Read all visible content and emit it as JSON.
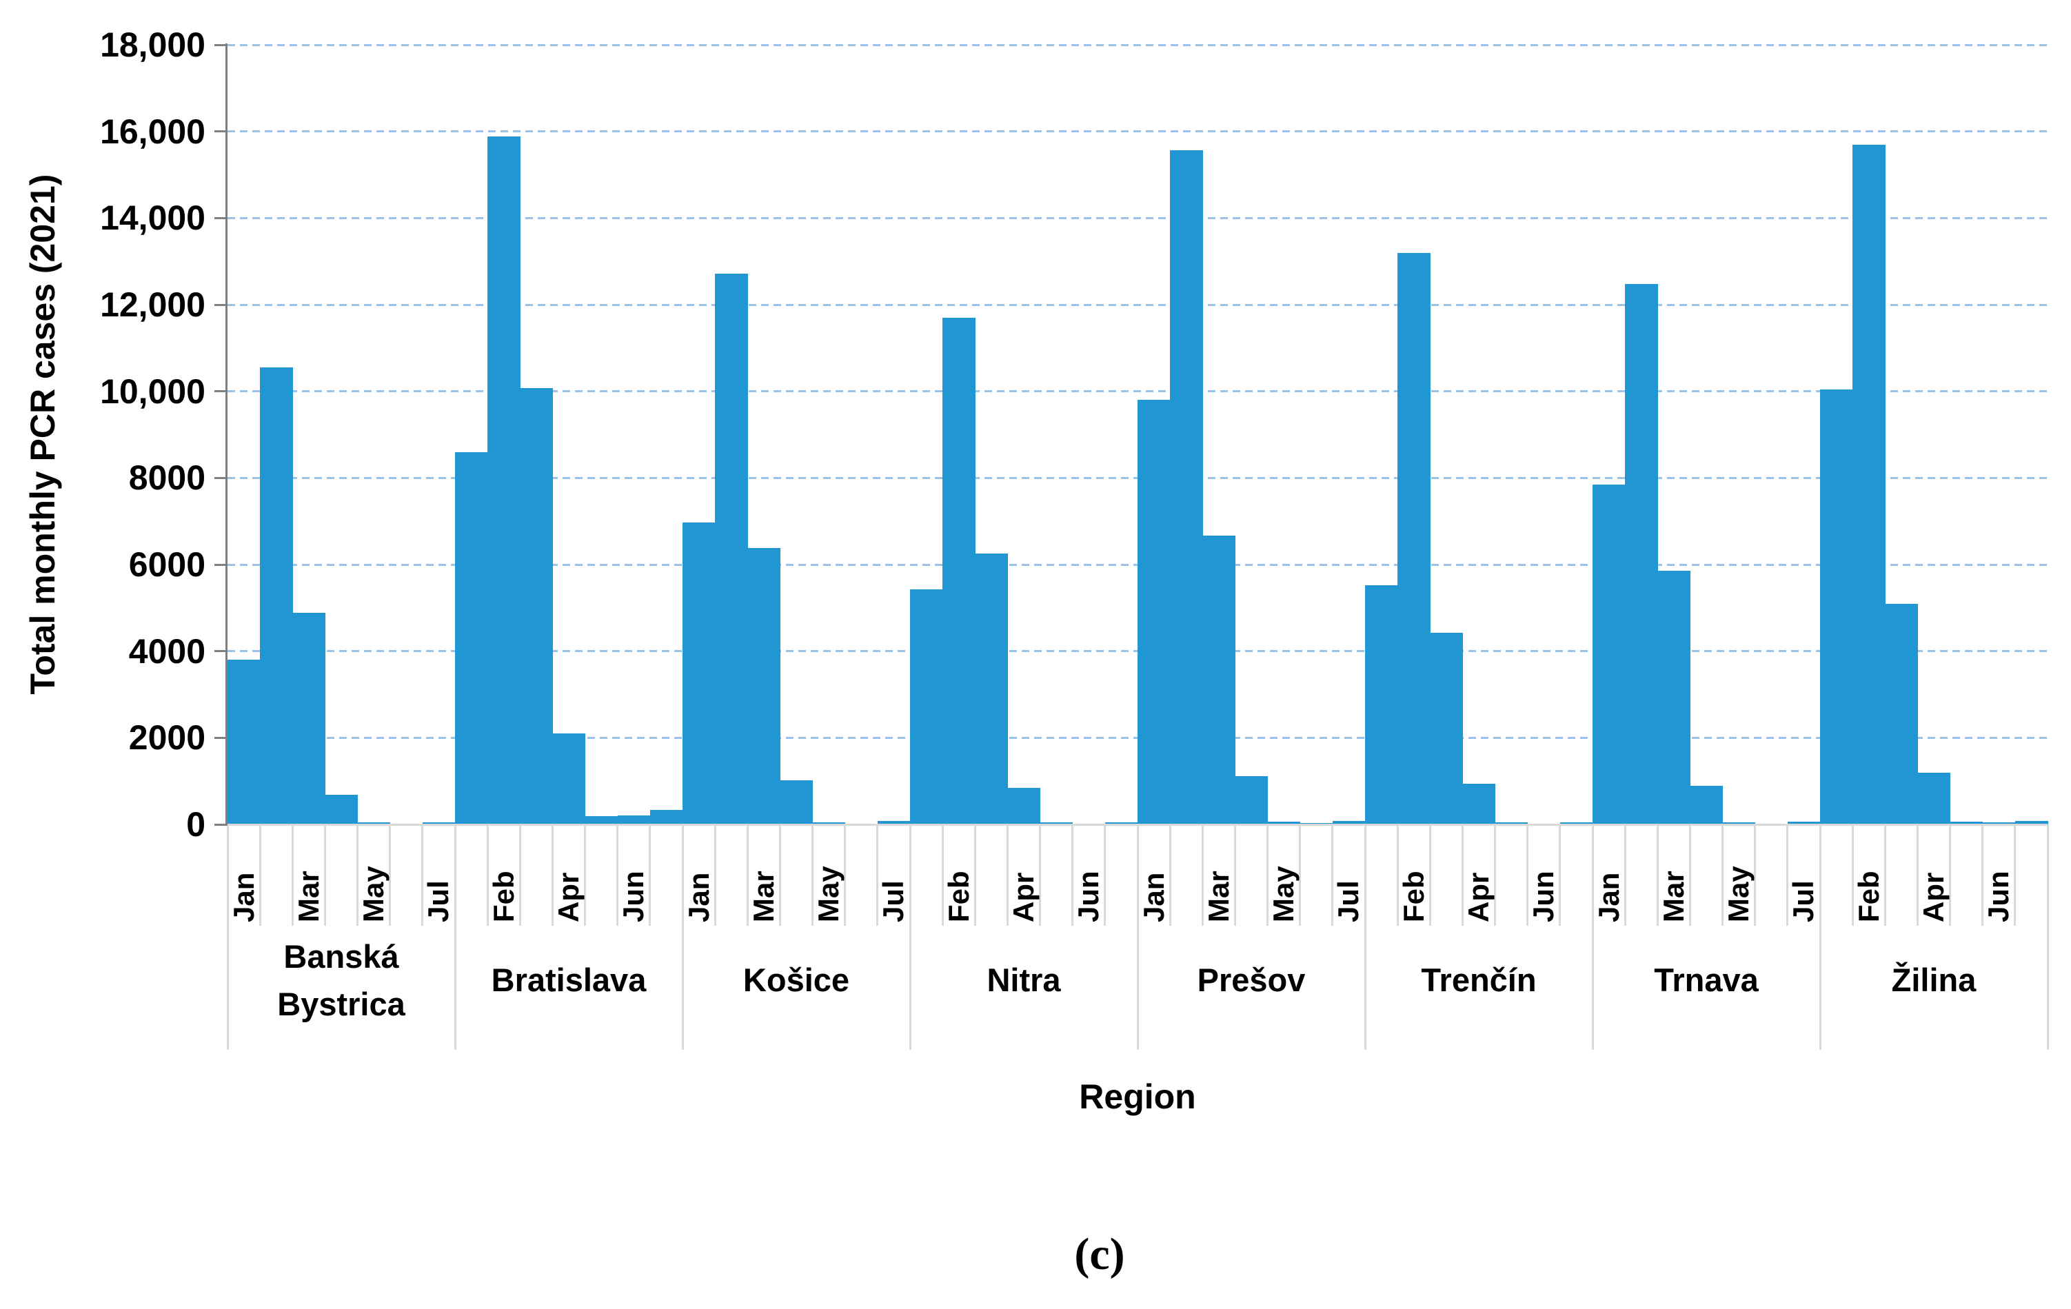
{
  "figure": {
    "y_axis_title": "Total monthly PCR cases (2021)",
    "x_axis_title": "Region",
    "caption": "(c)"
  },
  "chart_data": {
    "type": "bar",
    "title": "",
    "xlabel": "Region",
    "ylabel": "Total monthly PCR cases (2021)",
    "ylim": [
      0,
      18000
    ],
    "y_ticks": [
      0,
      2000,
      4000,
      6000,
      8000,
      10000,
      12000,
      14000,
      16000,
      18000
    ],
    "y_tick_labels": [
      "0",
      "2000",
      "4000",
      "6000",
      "8000",
      "10,000",
      "12,000",
      "14,000",
      "16,000",
      "18,000"
    ],
    "grid": "horizontal-dashed",
    "legend_position": "none",
    "months": [
      "Jan",
      "Feb",
      "Mar",
      "Apr",
      "May",
      "Jun",
      "Jul"
    ],
    "month_label_rule": "every second category across the whole axis (Jan, Mar, May, Jul, Feb, Apr, Jun, ...)",
    "bar_color": "#2097d3",
    "gridline_color": "#9cc2e5",
    "axis_color": "#7f7f7f",
    "separator_color": "#d9d9d9",
    "series": [
      {
        "region": "Banská Bystrica",
        "values": [
          3800,
          10550,
          4880,
          690,
          40,
          10,
          50
        ]
      },
      {
        "region": "Bratislava",
        "values": [
          8600,
          15890,
          10080,
          2100,
          190,
          210,
          330
        ]
      },
      {
        "region": "Košice",
        "values": [
          6970,
          12710,
          6380,
          1020,
          50,
          10,
          85
        ]
      },
      {
        "region": "Nitra",
        "values": [
          5420,
          11690,
          6250,
          840,
          45,
          10,
          55
        ]
      },
      {
        "region": "Prešov",
        "values": [
          9800,
          15570,
          6670,
          1110,
          65,
          30,
          75
        ]
      },
      {
        "region": "Trenčín",
        "values": [
          5520,
          13190,
          4430,
          940,
          40,
          10,
          50
        ]
      },
      {
        "region": "Trnava",
        "values": [
          7850,
          12480,
          5860,
          890,
          50,
          10,
          70
        ]
      },
      {
        "region": "Žilina",
        "values": [
          10050,
          15690,
          5100,
          1200,
          60,
          40,
          80
        ]
      }
    ]
  }
}
